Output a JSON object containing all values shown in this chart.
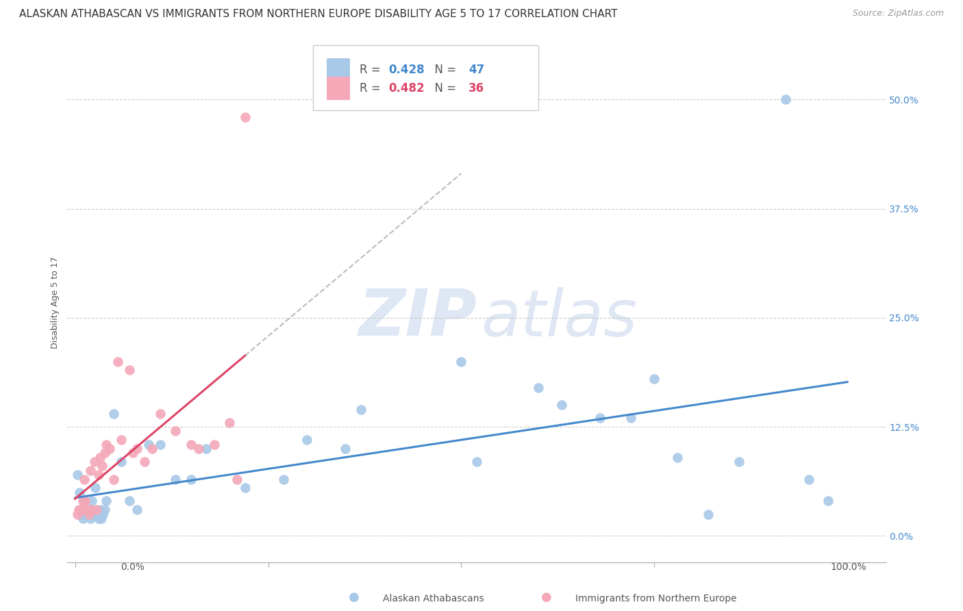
{
  "title": "ALASKAN ATHABASCAN VS IMMIGRANTS FROM NORTHERN EUROPE DISABILITY AGE 5 TO 17 CORRELATION CHART",
  "source": "Source: ZipAtlas.com",
  "ylabel": "Disability Age 5 to 17",
  "ytick_labels": [
    "0.0%",
    "12.5%",
    "25.0%",
    "37.5%",
    "50.0%"
  ],
  "ytick_values": [
    0.0,
    0.125,
    0.25,
    0.375,
    0.5
  ],
  "xlim": [
    -0.01,
    1.05
  ],
  "ylim": [
    -0.03,
    0.565
  ],
  "blue_R": 0.428,
  "blue_N": 47,
  "pink_R": 0.482,
  "pink_N": 36,
  "legend_label_blue": "Alaskan Athabascans",
  "legend_label_pink": "Immigrants from Northern Europe",
  "blue_color": "#A8C8E8",
  "pink_color": "#F4A8B8",
  "blue_line_color": "#4488CC",
  "pink_line_color": "#DD4466",
  "blue_scatter_x": [
    0.003,
    0.006,
    0.008,
    0.01,
    0.01,
    0.012,
    0.014,
    0.016,
    0.018,
    0.02,
    0.022,
    0.024,
    0.026,
    0.028,
    0.03,
    0.032,
    0.034,
    0.036,
    0.038,
    0.04,
    0.05,
    0.06,
    0.07,
    0.08,
    0.095,
    0.11,
    0.13,
    0.15,
    0.17,
    0.22,
    0.27,
    0.3,
    0.35,
    0.37,
    0.5,
    0.52,
    0.6,
    0.63,
    0.68,
    0.72,
    0.75,
    0.78,
    0.82,
    0.86,
    0.92,
    0.95,
    0.975
  ],
  "blue_scatter_y": [
    0.07,
    0.05,
    0.025,
    0.02,
    0.03,
    0.04,
    0.03,
    0.03,
    0.025,
    0.02,
    0.04,
    0.025,
    0.055,
    0.025,
    0.02,
    0.03,
    0.02,
    0.025,
    0.03,
    0.04,
    0.14,
    0.085,
    0.04,
    0.03,
    0.105,
    0.105,
    0.065,
    0.065,
    0.1,
    0.055,
    0.065,
    0.11,
    0.1,
    0.145,
    0.2,
    0.085,
    0.17,
    0.15,
    0.135,
    0.135,
    0.18,
    0.09,
    0.025,
    0.085,
    0.5,
    0.065,
    0.04
  ],
  "pink_scatter_x": [
    0.003,
    0.005,
    0.007,
    0.009,
    0.01,
    0.012,
    0.013,
    0.015,
    0.016,
    0.018,
    0.02,
    0.022,
    0.025,
    0.028,
    0.03,
    0.032,
    0.035,
    0.038,
    0.04,
    0.045,
    0.05,
    0.055,
    0.06,
    0.07,
    0.075,
    0.08,
    0.09,
    0.1,
    0.11,
    0.13,
    0.15,
    0.16,
    0.18,
    0.2,
    0.21,
    0.22
  ],
  "pink_scatter_y": [
    0.025,
    0.03,
    0.03,
    0.03,
    0.04,
    0.065,
    0.04,
    0.03,
    0.03,
    0.025,
    0.075,
    0.03,
    0.085,
    0.03,
    0.07,
    0.09,
    0.08,
    0.095,
    0.105,
    0.1,
    0.065,
    0.2,
    0.11,
    0.19,
    0.095,
    0.1,
    0.085,
    0.1,
    0.14,
    0.12,
    0.105,
    0.1,
    0.105,
    0.13,
    0.065,
    0.48
  ],
  "grid_color": "#CCCCCC",
  "background_color": "#FFFFFF",
  "title_fontsize": 11,
  "axis_label_fontsize": 9,
  "tick_fontsize": 10,
  "legend_fontsize": 12
}
